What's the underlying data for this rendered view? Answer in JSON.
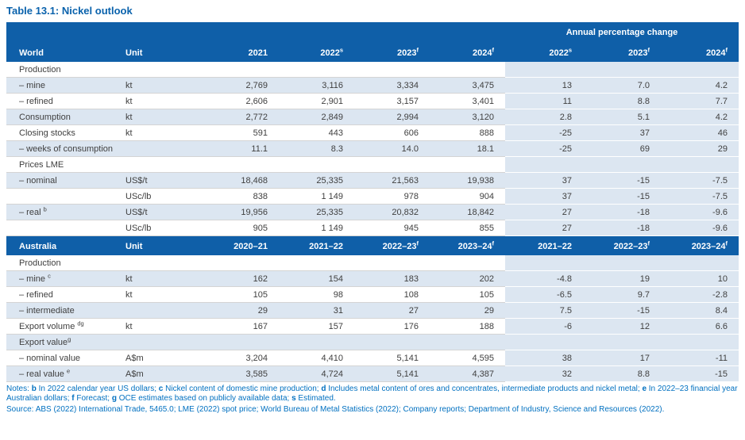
{
  "title": "Table 13.1: Nickel outlook",
  "annual_pct_header": "Annual percentage change",
  "colors": {
    "header_blue": "#0f5fa8",
    "row_shade": "#dce6f1",
    "title_blue": "#0a62ac",
    "notes_blue": "#0070c0",
    "data_text": "#3f3f3f"
  },
  "world": {
    "header": [
      {
        "t": "World"
      },
      {
        "t": "Unit"
      },
      {
        "t": "2021"
      },
      {
        "t": "2022",
        "s": "s"
      },
      {
        "t": "2023",
        "s": "f"
      },
      {
        "t": "2024",
        "s": "f"
      },
      {
        "t": "2022",
        "s": "s"
      },
      {
        "t": "2023",
        "s": "f"
      },
      {
        "t": "2024",
        "s": "f"
      }
    ],
    "rows": [
      {
        "label": "Production",
        "section": true,
        "unit": "",
        "values": [
          "",
          "",
          "",
          "",
          "",
          "",
          ""
        ]
      },
      {
        "label": "– mine",
        "unit": "kt",
        "values": [
          "2,769",
          "3,116",
          "3,334",
          "3,475",
          "13",
          "7.0",
          "4.2"
        ]
      },
      {
        "label": "– refined",
        "unit": "kt",
        "values": [
          "2,606",
          "2,901",
          "3,157",
          "3,401",
          "11",
          "8.8",
          "7.7"
        ]
      },
      {
        "label": "Consumption",
        "unit": "kt",
        "values": [
          "2,772",
          "2,849",
          "2,994",
          "3,120",
          "2.8",
          "5.1",
          "4.2"
        ]
      },
      {
        "label": "Closing stocks",
        "unit": "kt",
        "values": [
          "591",
          "443",
          "606",
          "888",
          "-25",
          "37",
          "46"
        ]
      },
      {
        "label": "– weeks of consumption",
        "unit": "",
        "values": [
          "11.1",
          "8.3",
          "14.0",
          "18.1",
          "-25",
          "69",
          "29"
        ]
      },
      {
        "label": "Prices LME",
        "section": true,
        "unit": "",
        "values": [
          "",
          "",
          "",
          "",
          "",
          "",
          ""
        ]
      },
      {
        "label": "– nominal",
        "unit": "US$/t",
        "values": [
          "18,468",
          "25,335",
          "21,563",
          "19,938",
          "37",
          "-15",
          "-7.5"
        ]
      },
      {
        "label": "",
        "unit": "USc/lb",
        "values": [
          "838",
          "1 149",
          "978",
          "904",
          "37",
          "-15",
          "-7.5"
        ]
      },
      {
        "label": "– real ",
        "sup": "b",
        "unit": "US$/t",
        "values": [
          "19,956",
          "25,335",
          "20,832",
          "18,842",
          "27",
          "-18",
          "-9.6"
        ]
      },
      {
        "label": "",
        "unit": "USc/lb",
        "values": [
          "905",
          "1 149",
          "945",
          "855",
          "27",
          "-18",
          "-9.6"
        ]
      }
    ]
  },
  "australia": {
    "header": [
      {
        "t": "Australia"
      },
      {
        "t": "Unit"
      },
      {
        "t": "2020–21"
      },
      {
        "t": "2021–22"
      },
      {
        "t": "2022–23",
        "s": "f"
      },
      {
        "t": "2023–24",
        "s": "f"
      },
      {
        "t": "2021–22"
      },
      {
        "t": "2022–23",
        "s": "f"
      },
      {
        "t": "2023–24",
        "s": "f"
      }
    ],
    "rows": [
      {
        "label": "Production",
        "section": true,
        "unit": "",
        "values": [
          "",
          "",
          "",
          "",
          "",
          "",
          ""
        ]
      },
      {
        "label": "– mine ",
        "sup": "c",
        "unit": "kt",
        "values": [
          "162",
          "154",
          "183",
          "202",
          "-4.8",
          "19",
          "10"
        ]
      },
      {
        "label": "– refined",
        "unit": "kt",
        "values": [
          "105",
          "98",
          "108",
          "105",
          "-6.5",
          "9.7",
          "-2.8"
        ]
      },
      {
        "label": "– intermediate",
        "unit": "",
        "values": [
          "29",
          "31",
          "27",
          "29",
          "7.5",
          "-15",
          "8.4"
        ]
      },
      {
        "label": "Export volume ",
        "sup": "dg",
        "unit": "kt",
        "values": [
          "167",
          "157",
          "176",
          "188",
          "-6",
          "12",
          "6.6"
        ]
      },
      {
        "label": "Export value",
        "sup": "g",
        "section": true,
        "unit": "",
        "values": [
          "",
          "",
          "",
          "",
          "",
          "",
          ""
        ]
      },
      {
        "label": "– nominal value",
        "unit": "A$m",
        "values": [
          "3,204",
          "4,410",
          "5,141",
          "4,595",
          "38",
          "17",
          "-11"
        ]
      },
      {
        "label": "– real value ",
        "sup": "e",
        "unit": "A$m",
        "values": [
          "3,585",
          "4,724",
          "5,141",
          "4,387",
          "32",
          "8.8",
          "-15"
        ]
      }
    ]
  },
  "notes": {
    "prefix": "Notes: ",
    "segments": [
      {
        "bold": "b",
        "text": " In 2022 calendar year US dollars; "
      },
      {
        "bold": "c",
        "text": " Nickel content of domestic mine production; "
      },
      {
        "bold": "d",
        "text": " Includes metal content of ores and concentrates, intermediate products and nickel metal; "
      },
      {
        "bold": "e",
        "text": " In 2022–23 financial year Australian dollars; "
      },
      {
        "bold": "f",
        "text": " Forecast; "
      },
      {
        "bold": "g",
        "text": " OCE estimates based on publicly available data; "
      },
      {
        "bold": "s",
        "text": " Estimated."
      }
    ]
  },
  "source": "Source: ABS (2022) International Trade, 5465.0; LME (2022) spot price; World Bureau of Metal Statistics (2022); Company reports; Department of Industry, Science and Resources (2022)."
}
